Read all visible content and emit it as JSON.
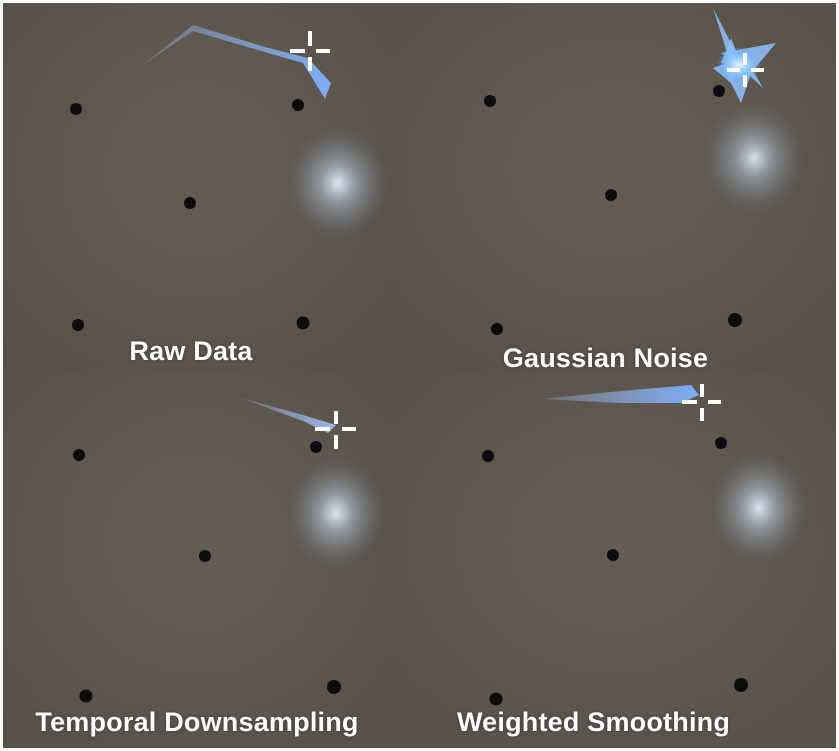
{
  "panels": [
    {
      "id": "raw",
      "label": "Raw Data"
    },
    {
      "id": "gauss",
      "label": "Gaussian Noise"
    },
    {
      "id": "temporal",
      "label": "Temporal Downsampling"
    },
    {
      "id": "weighted",
      "label": "Weighted Smoothing"
    }
  ],
  "colors": {
    "background_wall": "#5e574f",
    "trail": "#9fc6ff",
    "glow": "#cfe0f5",
    "dot": "#0c0c0c",
    "crosshair": "#ffffff",
    "label": "#ffffff"
  },
  "icons": {
    "cursor": "crosshair-icon",
    "target": "target-dot",
    "glow": "light-glow"
  }
}
